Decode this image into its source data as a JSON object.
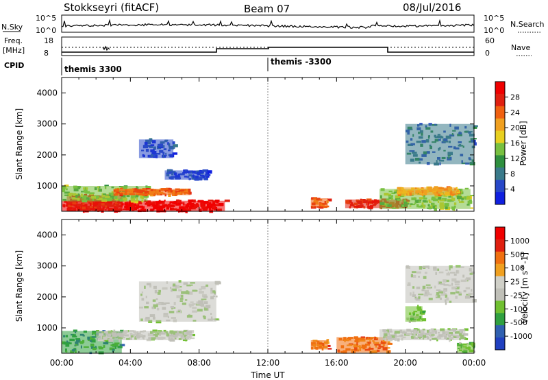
{
  "header": {
    "station": "Stokkseyri (fitACF)",
    "beam": "Beam 07",
    "date": "08/Jul/2016"
  },
  "top_panels": {
    "nsky_label": "N.Sky",
    "nsky_ticks": [
      "10^5",
      "10^0"
    ],
    "nsearch_label": "N.Search",
    "nsearch_ticks": [
      "10^5",
      "10^0"
    ],
    "freq_label_1": "Freq.",
    "freq_label_2": "[MHz]",
    "freq_ticks": [
      "18",
      "8"
    ],
    "nave_label": "Nave",
    "nave_ticks": [
      "60",
      "0"
    ],
    "cpid_label": "CPID",
    "cpid_segments": [
      {
        "start_hour": 0,
        "end_hour": 12,
        "label": "themis 3300"
      },
      {
        "start_hour": 12,
        "end_hour": 24,
        "label": "themis -3300"
      }
    ]
  },
  "colors": {
    "power_scale": [
      "#1020e0",
      "#2848c8",
      "#3a7a8a",
      "#2f8f3f",
      "#78c040",
      "#e8d020",
      "#f0a020",
      "#f06010",
      "#e02010",
      "#f00000"
    ],
    "velocity_scale": [
      "#2040c0",
      "#3060b0",
      "#30a040",
      "#70c030",
      "#c0c0b8",
      "#d0d0c8",
      "#f0a020",
      "#f07010",
      "#e02010",
      "#f00000"
    ],
    "ground_scatter": "#c0c0b8"
  },
  "chart_data": [
    {
      "type": "heatmap",
      "name": "power",
      "xlabel": "",
      "ylabel": "Slant Range [km]",
      "xlim": [
        0,
        24
      ],
      "ylim": [
        180,
        4500
      ],
      "yticks": [
        "1000",
        "2000",
        "3000",
        "4000"
      ],
      "colorbar_label": "Power [dB]",
      "colorbar_ticks": [
        "28",
        "24",
        "20",
        "16",
        "12",
        "8",
        "4"
      ],
      "regions": [
        {
          "t0": 0.0,
          "t1": 9.5,
          "r0": 180,
          "r1": 520,
          "level": 9
        },
        {
          "t0": 0.3,
          "t1": 3.5,
          "r0": 200,
          "r1": 700,
          "level": 8
        },
        {
          "t0": 0.0,
          "t1": 5.0,
          "r0": 500,
          "r1": 1000,
          "level": 4
        },
        {
          "t0": 3.0,
          "t1": 7.5,
          "r0": 700,
          "r1": 900,
          "level": 7
        },
        {
          "t0": 6.0,
          "t1": 8.5,
          "r0": 1200,
          "r1": 1500,
          "level": 1
        },
        {
          "t0": 4.5,
          "t1": 6.5,
          "r0": 1900,
          "r1": 2500,
          "level": 1
        },
        {
          "t0": 16.5,
          "t1": 20.0,
          "r0": 280,
          "r1": 560,
          "level": 8
        },
        {
          "t0": 18.5,
          "t1": 23.8,
          "r0": 250,
          "r1": 900,
          "level": 4
        },
        {
          "t0": 19.5,
          "t1": 23.0,
          "r0": 700,
          "r1": 950,
          "level": 6
        },
        {
          "t0": 20.0,
          "t1": 24.0,
          "r0": 1700,
          "r1": 3000,
          "level": 2
        },
        {
          "t0": 14.5,
          "t1": 15.5,
          "r0": 300,
          "r1": 600,
          "level": 7
        }
      ]
    },
    {
      "type": "heatmap",
      "name": "velocity",
      "xlabel": "Time UT",
      "ylabel": "Slant Range [km]",
      "xlim": [
        0,
        24
      ],
      "ylim": [
        180,
        4500
      ],
      "xticks": [
        "00:00",
        "04:00",
        "08:00",
        "12:00",
        "16:00",
        "20:00",
        "00:00"
      ],
      "yticks": [
        "1000",
        "2000",
        "3000",
        "4000"
      ],
      "colorbar_label": "Velocity [m s^-1]",
      "colorbar_ticks": [
        "1000",
        "500",
        "100",
        "25",
        "-25",
        "-100",
        "-500",
        "-1000"
      ],
      "regions": [
        {
          "t0": 0.0,
          "t1": 3.5,
          "r0": 180,
          "r1": 900,
          "level": 2
        },
        {
          "t0": 2.0,
          "t1": 7.5,
          "r0": 600,
          "r1": 900,
          "level": 4
        },
        {
          "t0": 4.5,
          "t1": 9.0,
          "r0": 1200,
          "r1": 2500,
          "level": 4
        },
        {
          "t0": 16.0,
          "t1": 19.0,
          "r0": 200,
          "r1": 700,
          "level": 7
        },
        {
          "t0": 14.5,
          "t1": 15.5,
          "r0": 300,
          "r1": 600,
          "level": 7
        },
        {
          "t0": 18.5,
          "t1": 23.5,
          "r0": 600,
          "r1": 950,
          "level": 4
        },
        {
          "t0": 20.0,
          "t1": 24.0,
          "r0": 1800,
          "r1": 3000,
          "level": 4
        },
        {
          "t0": 20.0,
          "t1": 21.0,
          "r0": 1200,
          "r1": 1700,
          "level": 3
        },
        {
          "t0": 23.0,
          "t1": 24.0,
          "r0": 200,
          "r1": 500,
          "level": 3
        }
      ]
    }
  ]
}
